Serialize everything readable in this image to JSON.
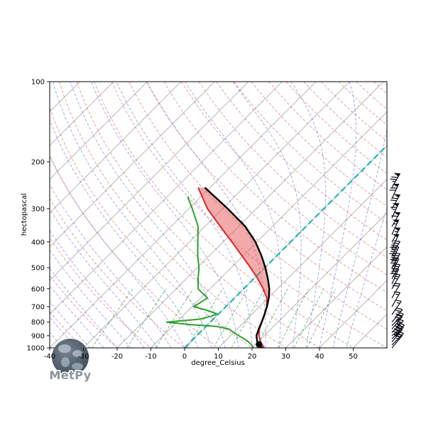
{
  "figure": {
    "background": "#ffffff"
  },
  "axes": {
    "xlabel": "degree_Celsius",
    "ylabel": "hectopascal",
    "x_ticks": [
      -40,
      -30,
      -20,
      -10,
      0,
      10,
      20,
      30,
      40,
      50
    ],
    "y_ticks": [
      100,
      200,
      300,
      400,
      500,
      600,
      700,
      800,
      900,
      1000
    ],
    "x_surface_range": [
      -40,
      60
    ],
    "pressure_range": [
      100,
      1000
    ]
  },
  "chart_data": {
    "type": "skewt-log-p",
    "title": "",
    "xlabel": "degree_Celsius",
    "ylabel": "hectopascal",
    "skew_deg": 45,
    "pressure_hPa": [
      1000,
      950,
      900,
      850,
      800,
      750,
      700,
      650,
      600,
      550,
      500,
      450,
      400,
      350,
      300,
      250
    ],
    "temperature_C": [
      23.6,
      20.8,
      18.4,
      16.6,
      15.3,
      13.9,
      12.1,
      9.6,
      5.8,
      1.2,
      -4.2,
      -10.4,
      -17.4,
      -25.4,
      -34.5,
      -43.5
    ],
    "parcel_profile_C": [
      23.0,
      19.8,
      17.7,
      16.4,
      15.2,
      13.8,
      12.2,
      10.2,
      7.6,
      4.2,
      0.2,
      -4.6,
      -10.4,
      -18.0,
      -28.5,
      -41.5
    ],
    "dewpoint_pressure_hPa": [
      1000,
      975,
      950,
      925,
      900,
      875,
      850,
      830,
      815,
      800,
      780,
      760,
      745,
      720,
      700,
      650,
      600,
      550,
      500,
      450,
      400,
      350,
      300,
      270
    ],
    "dewpoint_C": [
      20.4,
      19.0,
      17.2,
      15.0,
      12.4,
      10.0,
      7.6,
      3.0,
      -6.5,
      -13.0,
      -4.0,
      -1.5,
      -0.5,
      -5.0,
      -9.5,
      -8.0,
      -13.5,
      -16.5,
      -19.5,
      -23.5,
      -27.5,
      -32.0,
      -39.0,
      -44.0
    ],
    "surface_parcel_marker": {
      "pressure_hPa": 970,
      "temperature_C": 21.0
    },
    "winds": [
      {
        "p": 1000,
        "kt": 25,
        "dir": 40
      },
      {
        "p": 975,
        "kt": 30,
        "dir": 45
      },
      {
        "p": 950,
        "kt": 35,
        "dir": 40
      },
      {
        "p": 925,
        "kt": 30,
        "dir": 45
      },
      {
        "p": 900,
        "kt": 30,
        "dir": 50
      },
      {
        "p": 875,
        "kt": 25,
        "dir": 45
      },
      {
        "p": 850,
        "kt": 25,
        "dir": 40
      },
      {
        "p": 825,
        "kt": 20,
        "dir": 45
      },
      {
        "p": 800,
        "kt": 20,
        "dir": 40
      },
      {
        "p": 750,
        "kt": 15,
        "dir": 35
      },
      {
        "p": 700,
        "kt": 15,
        "dir": 30
      },
      {
        "p": 650,
        "kt": 20,
        "dir": 30
      },
      {
        "p": 600,
        "kt": 25,
        "dir": 30
      },
      {
        "p": 575,
        "kt": 30,
        "dir": 25
      },
      {
        "p": 550,
        "kt": 35,
        "dir": 30
      },
      {
        "p": 525,
        "kt": 35,
        "dir": 25
      },
      {
        "p": 500,
        "kt": 40,
        "dir": 30
      },
      {
        "p": 475,
        "kt": 45,
        "dir": 25
      },
      {
        "p": 450,
        "kt": 45,
        "dir": 30
      },
      {
        "p": 425,
        "kt": 50,
        "dir": 25
      },
      {
        "p": 400,
        "kt": 55,
        "dir": 30
      },
      {
        "p": 375,
        "kt": 55,
        "dir": 25
      },
      {
        "p": 350,
        "kt": 60,
        "dir": 30
      },
      {
        "p": 325,
        "kt": 65,
        "dir": 25
      },
      {
        "p": 300,
        "kt": 70,
        "dir": 30
      },
      {
        "p": 275,
        "kt": 70,
        "dir": 25
      },
      {
        "p": 250,
        "kt": 75,
        "dir": 30
      }
    ],
    "background_lines": {
      "isotherms_C": {
        "start": -120,
        "end": 60,
        "step": 10
      },
      "highlight_isotherm_C": 0,
      "dry_adiabats_theta_C": {
        "start": -30,
        "end": 210,
        "step": 10
      },
      "moist_adiabats_start_C": {
        "start": -40,
        "end": 48,
        "step": 4
      },
      "mixing_ratio_g_kg": [
        0.4,
        1,
        2,
        4,
        7,
        10,
        16,
        24,
        32,
        40
      ],
      "mixing_ratio_top_hPa": 600
    },
    "colors": {
      "isotherm": "#b8b8b8",
      "dry_adiabat": "rgba(204,85,85,0.55)",
      "moist_adiabat": "rgba(88,88,214,0.5)",
      "mixing_ratio": "rgba(50,140,70,0.6)",
      "highlight_isotherm": "#00b5ad",
      "temperature": "#d62728",
      "dewpoint": "#2ca02c",
      "parcel": "#000000",
      "cape_fill": "rgba(230,85,85,0.5)",
      "wind_barb": "#0a0a14"
    }
  },
  "branding": {
    "logo_text": "MetPy"
  }
}
